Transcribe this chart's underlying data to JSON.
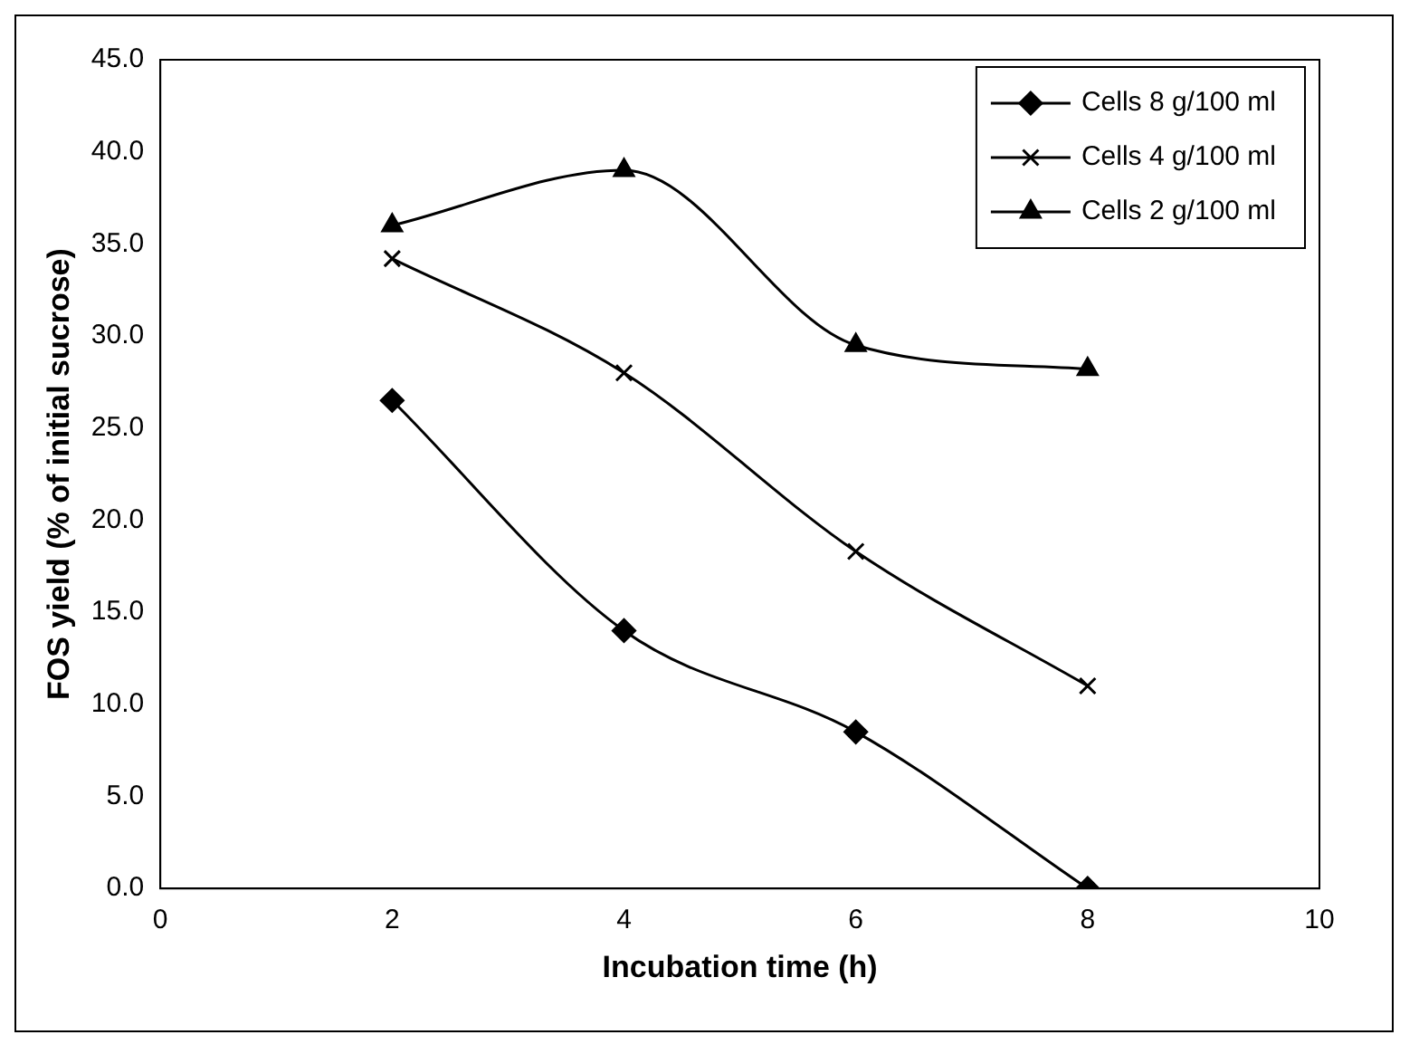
{
  "chart_data": {
    "type": "line",
    "xlabel": "Incubation time (h)",
    "ylabel": "FOS yield (% of initial sucrose)",
    "x": [
      2,
      4,
      6,
      8
    ],
    "series": [
      {
        "name": "Cells 8 g/100 ml",
        "color": "#000000",
        "marker": "diamond",
        "values": [
          26.5,
          14.0,
          8.5,
          0.0
        ]
      },
      {
        "name": "Cells 4 g/100 ml",
        "color": "#000000",
        "marker": "cross",
        "values": [
          34.2,
          28.0,
          18.3,
          11.0
        ]
      },
      {
        "name": "Cells 2 g/100 ml",
        "color": "#000000",
        "marker": "triangle",
        "values": [
          36.0,
          39.0,
          29.5,
          28.2
        ]
      }
    ],
    "xlim": [
      0,
      10
    ],
    "xticks": [
      0,
      2,
      4,
      6,
      8,
      10
    ],
    "ylim": [
      0,
      45
    ],
    "yticks": [
      {
        "value": 0,
        "label": "0.0"
      },
      {
        "value": 5,
        "label": "5.0"
      },
      {
        "value": 10,
        "label": "10.0"
      },
      {
        "value": 15,
        "label": "15.0"
      },
      {
        "value": 20,
        "label": "20.0"
      },
      {
        "value": 25,
        "label": "25.0"
      },
      {
        "value": 30,
        "label": "30.0"
      },
      {
        "value": 35,
        "label": "35.0"
      },
      {
        "value": 40,
        "label": "40.0"
      },
      {
        "value": 45,
        "label": "45.0"
      }
    ],
    "grid": false,
    "legend": "top right",
    "line_style": "solid"
  }
}
